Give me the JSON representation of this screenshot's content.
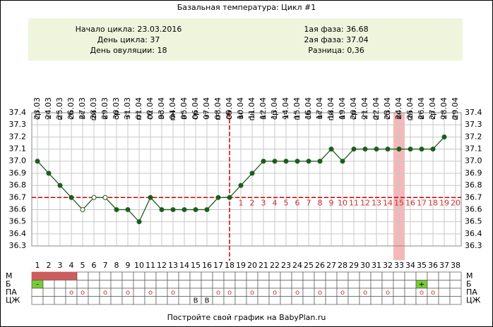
{
  "chart_data": {
    "type": "line",
    "title": "Базальная температура: Цикл #1",
    "info_left": [
      {
        "label": "Начало цикла:",
        "value": "23.03.2016"
      },
      {
        "label": "День цикла:",
        "value": 37
      },
      {
        "label": "День овуляции:",
        "value": 18
      }
    ],
    "info_right": [
      {
        "label": "1ая фаза:",
        "value": 36.68
      },
      {
        "label": "2ая фаза:",
        "value": 37.04
      },
      {
        "label": "Разница:",
        "value": "0,36"
      }
    ],
    "categories": [
      1,
      2,
      3,
      4,
      5,
      6,
      7,
      8,
      9,
      10,
      11,
      12,
      13,
      14,
      15,
      16,
      17,
      18,
      19,
      20,
      21,
      22,
      23,
      24,
      25,
      26,
      27,
      28,
      29,
      30,
      31,
      32,
      33,
      34,
      35,
      36,
      37,
      38
    ],
    "dates": [
      "23.03",
      "24.03",
      "25.03",
      "26.03",
      "27.03",
      "28.03",
      "29.03",
      "30.03",
      "31.03",
      "01.04",
      "02.04",
      "03.04",
      "04.04",
      "05.04",
      "06.04",
      "07.04",
      "08.04",
      "09.04",
      "10.04",
      "11.04",
      "12.04",
      "13.04",
      "14.04",
      "15.04",
      "16.04",
      "17.04",
      "18.04",
      "19.04",
      "20.04",
      "21.04",
      "22.04",
      "23.04",
      "24.04",
      "25.04",
      "26.04",
      "27.04",
      "28.04",
      "29.04"
    ],
    "weekdays": [
      "ср",
      "чт",
      "пт",
      "сб",
      "вс",
      "пн",
      "вт",
      "ср",
      "чт",
      "пт",
      "сб",
      "вс",
      "пн",
      "вт",
      "ср",
      "чт",
      "пт",
      "сб",
      "вс",
      "пн",
      "вт",
      "ср",
      "чт",
      "пт",
      "сб",
      "вс",
      "пн",
      "вт",
      "ср",
      "чт",
      "пт",
      "сб",
      "вс",
      "пн",
      "вт",
      "ср",
      "чт",
      "пт"
    ],
    "series": [
      {
        "name": "Температура",
        "color": "#1e5c1e",
        "values": [
          37.0,
          36.9,
          36.8,
          36.7,
          36.6,
          36.7,
          36.7,
          36.6,
          36.6,
          36.5,
          36.7,
          36.6,
          36.6,
          36.6,
          36.6,
          36.6,
          36.7,
          36.7,
          36.8,
          36.9,
          37.0,
          37.0,
          37.0,
          37.0,
          37.0,
          37.0,
          37.1,
          37.0,
          37.1,
          37.1,
          37.1,
          37.1,
          37.1,
          37.1,
          37.1,
          37.1,
          37.2,
          null
        ]
      }
    ],
    "hollow_days": [
      5,
      6,
      7
    ],
    "ylim": [
      36.3,
      37.4
    ],
    "yticks": [
      36.3,
      36.4,
      36.5,
      36.6,
      36.7,
      36.8,
      36.9,
      {
        "value": 37,
        "label": "37.0"
      },
      37.1,
      37.2,
      37.3,
      37.4
    ],
    "grid": true,
    "cover_line": 36.7,
    "ovulation_day": 18,
    "highlight_day": 33,
    "luteal_days": [
      null,
      null,
      null,
      null,
      null,
      null,
      null,
      null,
      null,
      null,
      null,
      null,
      null,
      null,
      null,
      null,
      null,
      null,
      1,
      2,
      3,
      4,
      5,
      6,
      7,
      8,
      9,
      10,
      11,
      12,
      13,
      14,
      15,
      16,
      17,
      18,
      19,
      20
    ],
    "calendar": [
      {
        "label": "М",
        "filled": [
          1,
          2,
          3,
          4
        ],
        "fill": "#cd5c5c",
        "cells": []
      },
      {
        "label": "Б",
        "filled": [
          1,
          35
        ],
        "fill": "#77cc33",
        "cells": [
          [
            1,
            "-"
          ],
          [
            35,
            "+"
          ]
        ]
      },
      {
        "label": "ПА",
        "filled": [],
        "fill": "#ffffff",
        "cells": [
          [
            4,
            "o"
          ],
          [
            5,
            "o"
          ],
          [
            7,
            "o"
          ],
          [
            9,
            "o"
          ],
          [
            11,
            "o"
          ],
          [
            13,
            "o"
          ],
          [
            17,
            "o"
          ],
          [
            18,
            "o"
          ],
          [
            20,
            "o"
          ],
          [
            22,
            "o"
          ],
          [
            24,
            "o"
          ],
          [
            26,
            "o"
          ],
          [
            28,
            "o"
          ],
          [
            30,
            "o"
          ],
          [
            32,
            "o"
          ],
          [
            35,
            "o"
          ],
          [
            36,
            "o"
          ]
        ]
      },
      {
        "label": "ЦЖ",
        "filled": [],
        "fill": "#ffffff",
        "cells": [
          [
            15,
            "В"
          ],
          [
            16,
            "В"
          ]
        ]
      }
    ],
    "footer": "Постройте свой график на BabyPlan.ru"
  }
}
